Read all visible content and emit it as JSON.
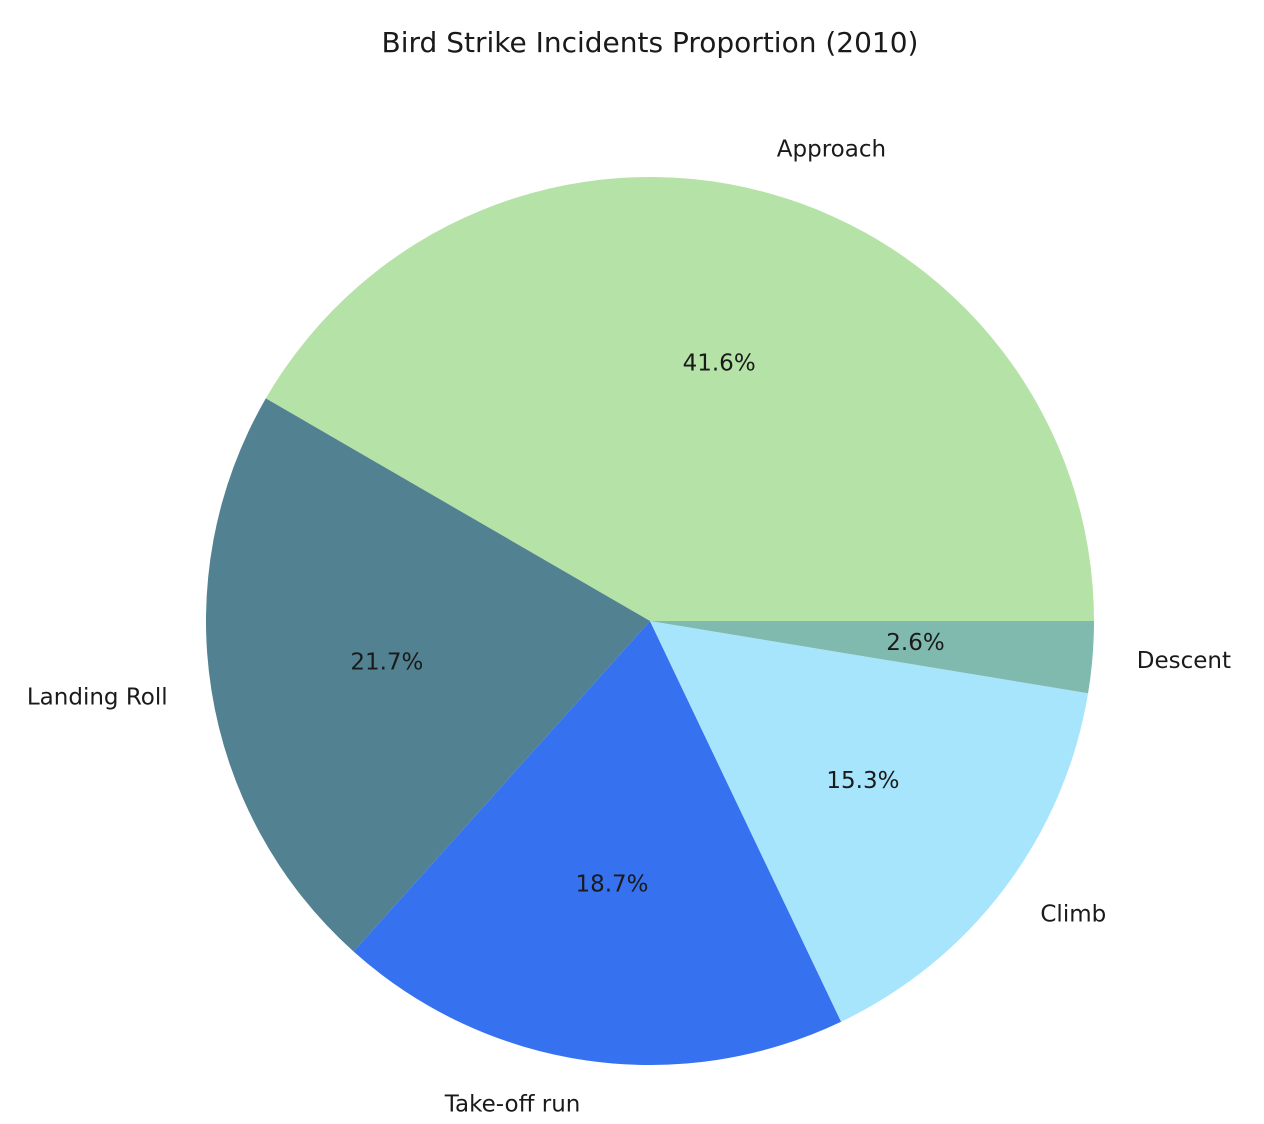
{
  "chart_data": {
    "type": "pie",
    "title": "Bird Strike Incidents Proportion (2010)",
    "start_angle_deg": 0,
    "direction": "counterclockwise",
    "slices": [
      {
        "label": "Approach",
        "percent": 41.6,
        "pct_text": "41.6%",
        "color": "#b5e2a6"
      },
      {
        "label": "Landing Roll",
        "percent": 21.7,
        "pct_text": "21.7%",
        "color": "#528191"
      },
      {
        "label": "Take-off run",
        "percent": 18.7,
        "pct_text": "18.7%",
        "color": "#3672ef"
      },
      {
        "label": "Climb",
        "percent": 15.3,
        "pct_text": "15.3%",
        "color": "#a7e5fd"
      },
      {
        "label": "Descent",
        "percent": 2.6,
        "pct_text": "2.6%",
        "color": "#80b9ae"
      }
    ]
  }
}
